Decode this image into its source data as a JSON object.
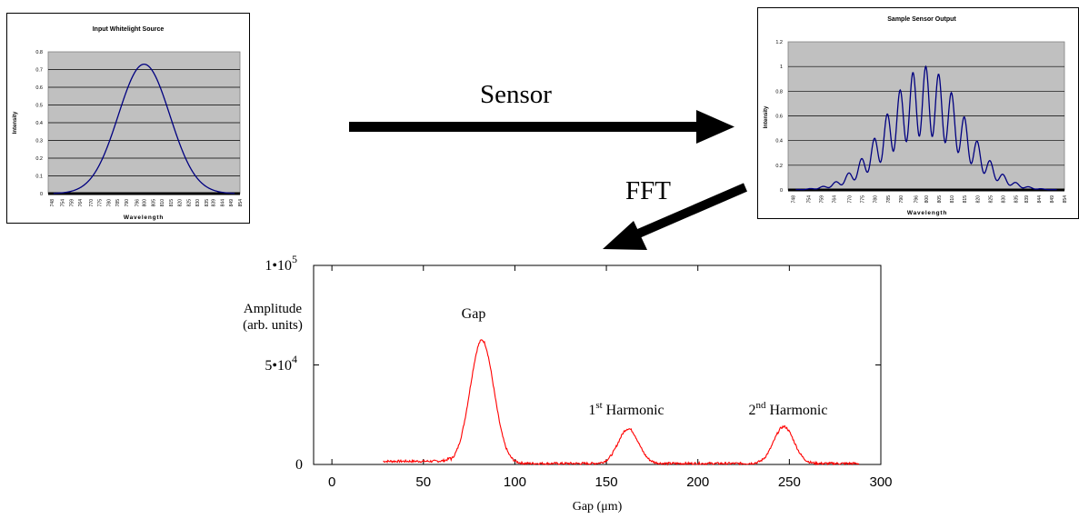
{
  "labels": {
    "sensor": "Sensor",
    "fft": "FFT"
  },
  "colors": {
    "blue_curve": "#000080",
    "red_curve": "#ff0000",
    "plot_bg": "#c0c0c0"
  },
  "chart_data": [
    {
      "type": "line",
      "title": "Input Whitelight Source",
      "xlabel": "Wavelength",
      "ylabel": "Intensity",
      "ylim": [
        0,
        0.8
      ],
      "yticks": [
        "0",
        "0.1",
        "0.2",
        "0.3",
        "0.4",
        "0.5",
        "0.6",
        "0.7",
        "0.8"
      ],
      "xlim": [
        746,
        854
      ],
      "xticks": [
        "748",
        "754",
        "759",
        "764",
        "770",
        "775",
        "780",
        "785",
        "790",
        "796",
        "800",
        "805",
        "810",
        "815",
        "820",
        "825",
        "830",
        "835",
        "839",
        "844",
        "849",
        "854"
      ],
      "grid": true,
      "series": [
        {
          "x": [
            748,
            754,
            759,
            764,
            770,
            775,
            780,
            785,
            790,
            796,
            800,
            805,
            810,
            815,
            820,
            825,
            830,
            835,
            839,
            844,
            849,
            854
          ],
          "y": [
            0,
            0.005,
            0.015,
            0.035,
            0.075,
            0.155,
            0.27,
            0.42,
            0.57,
            0.7,
            0.73,
            0.7,
            0.58,
            0.43,
            0.28,
            0.16,
            0.08,
            0.035,
            0.015,
            0.005,
            0,
            0
          ]
        }
      ]
    },
    {
      "type": "line",
      "title": "Sample Sensor Output",
      "xlabel": "Wavelength",
      "ylabel": "Intensity",
      "ylim": [
        0,
        1.2
      ],
      "yticks": [
        "0",
        "0.2",
        "0.4",
        "0.6",
        "0.8",
        "1",
        "1.2"
      ],
      "xlim": [
        746,
        854
      ],
      "xticks": [
        "748",
        "754",
        "759",
        "764",
        "770",
        "775",
        "780",
        "785",
        "790",
        "796",
        "800",
        "805",
        "810",
        "815",
        "820",
        "825",
        "830",
        "835",
        "839",
        "844",
        "849",
        "854"
      ],
      "grid": true,
      "series": [
        {
          "x": [
            752,
            757,
            762,
            767,
            772,
            777,
            782,
            787,
            792,
            797,
            800,
            805,
            810,
            815,
            820,
            825,
            830,
            835,
            840,
            845
          ],
          "y": [
            0.01,
            0.02,
            0.03,
            0.07,
            0.14,
            0.24,
            0.4,
            0.59,
            0.78,
            0.93,
            0.99,
            0.95,
            0.8,
            0.6,
            0.4,
            0.23,
            0.12,
            0.05,
            0.02,
            0.01
          ]
        }
      ]
    },
    {
      "type": "line",
      "xlabel": "Gap (μm)",
      "ylabel_line1": "Amplitude",
      "ylabel_line2": "(arb. units)",
      "xlim": [
        -10,
        300
      ],
      "ylim": [
        0,
        100000
      ],
      "xticks": [
        "0",
        "50",
        "100",
        "150",
        "200",
        "250",
        "300"
      ],
      "ytick_labels": {
        "zero": "0",
        "mid_base": "5•10",
        "mid_exp": "4",
        "top_base": "1•10",
        "top_exp": "5"
      },
      "series": [
        {
          "peaks": [
            {
              "x": 82,
              "y": 62000
            },
            {
              "x": 162,
              "y": 17500
            },
            {
              "x": 247,
              "y": 18500
            }
          ]
        }
      ],
      "annotations": {
        "gap": "Gap",
        "h1_num": "1",
        "h1_sup": "st",
        "h1_text": " Harmonic",
        "h2_num": "2",
        "h2_sup": "nd",
        "h2_text": " Harmonic"
      }
    }
  ]
}
